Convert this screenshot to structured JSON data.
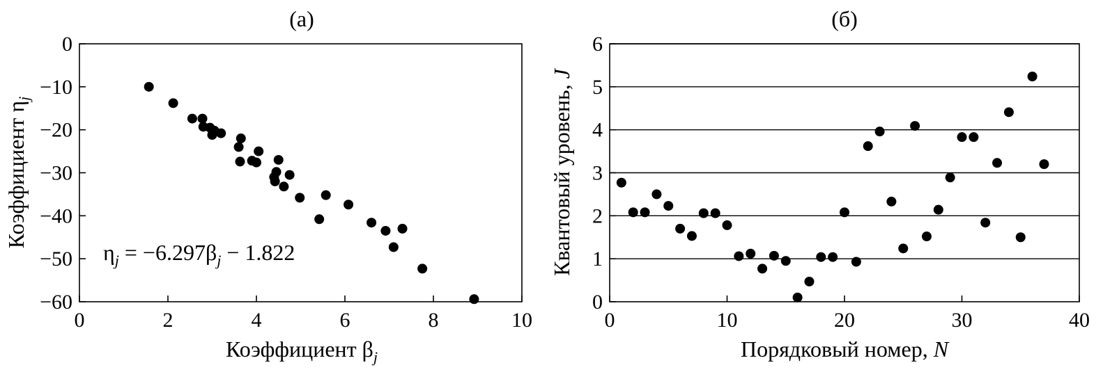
{
  "chart_data": [
    {
      "type": "scatter",
      "panel_label": "(a)",
      "xlabel": "Коэффициент β",
      "xlabel_sub": "j",
      "ylabel": "Коэффициент η",
      "ylabel_sub": "j",
      "xlim": [
        0,
        10
      ],
      "ylim": [
        -60,
        0
      ],
      "x_ticks": [
        0,
        2,
        4,
        6,
        8,
        10
      ],
      "x_tick_labels": [
        "0",
        "2",
        "4",
        "6",
        "8",
        "10"
      ],
      "y_ticks": [
        0,
        -10,
        -20,
        -30,
        -40,
        -50,
        -60
      ],
      "y_tick_labels": [
        "0",
        "−10",
        "−20",
        "−30",
        "−40",
        "−50",
        "−60"
      ],
      "grid": false,
      "annotation": {
        "lhs": "η",
        "lhs_sub": "j",
        "mid": " = −6.297β",
        "mid_sub": "j",
        "rhs": " − 1.822"
      },
      "points": [
        [
          1.57,
          -10.0
        ],
        [
          2.12,
          -13.8
        ],
        [
          2.55,
          -17.4
        ],
        [
          2.78,
          -17.4
        ],
        [
          2.8,
          -19.3
        ],
        [
          2.95,
          -19.5
        ],
        [
          3.0,
          -21.2
        ],
        [
          3.05,
          -20.2
        ],
        [
          3.2,
          -20.8
        ],
        [
          3.6,
          -24.0
        ],
        [
          3.65,
          -22.0
        ],
        [
          3.63,
          -27.4
        ],
        [
          3.9,
          -27.2
        ],
        [
          4.0,
          -27.6
        ],
        [
          4.05,
          -25.0
        ],
        [
          4.4,
          -31.0
        ],
        [
          4.42,
          -32.0
        ],
        [
          4.45,
          -29.8
        ],
        [
          4.5,
          -27.0
        ],
        [
          4.62,
          -33.2
        ],
        [
          4.75,
          -30.5
        ],
        [
          4.98,
          -35.8
        ],
        [
          5.42,
          -40.8
        ],
        [
          5.57,
          -35.2
        ],
        [
          6.08,
          -37.4
        ],
        [
          6.6,
          -41.6
        ],
        [
          6.92,
          -43.5
        ],
        [
          7.1,
          -47.3
        ],
        [
          7.3,
          -43.0
        ],
        [
          7.75,
          -52.3
        ],
        [
          8.92,
          -59.4
        ]
      ]
    },
    {
      "type": "scatter",
      "panel_label": "(б)",
      "xlabel": "Порядковый номер, ",
      "xlabel_var": "N",
      "ylabel": "Квантовый уровень, ",
      "ylabel_var": "J",
      "xlim": [
        0,
        40
      ],
      "ylim": [
        0,
        6
      ],
      "x_ticks": [
        0,
        10,
        20,
        30,
        40
      ],
      "x_tick_labels": [
        "0",
        "10",
        "20",
        "30",
        "40"
      ],
      "y_ticks": [
        0,
        1,
        2,
        3,
        4,
        5,
        6
      ],
      "y_tick_labels": [
        "0",
        "1",
        "2",
        "3",
        "4",
        "5",
        "6"
      ],
      "grid": true,
      "grid_axis": "y",
      "points": [
        [
          1,
          2.77
        ],
        [
          2,
          2.08
        ],
        [
          3,
          2.08
        ],
        [
          4,
          2.5
        ],
        [
          5,
          2.23
        ],
        [
          6,
          1.7
        ],
        [
          7,
          1.53
        ],
        [
          8,
          2.06
        ],
        [
          9,
          2.06
        ],
        [
          10,
          1.78
        ],
        [
          11,
          1.06
        ],
        [
          12,
          1.12
        ],
        [
          13,
          0.77
        ],
        [
          14,
          1.07
        ],
        [
          15,
          0.95
        ],
        [
          16,
          0.1
        ],
        [
          17,
          0.47
        ],
        [
          18,
          1.04
        ],
        [
          19,
          1.04
        ],
        [
          20,
          2.08
        ],
        [
          21,
          0.93
        ],
        [
          22,
          3.62
        ],
        [
          23,
          3.96
        ],
        [
          24,
          2.33
        ],
        [
          25,
          1.24
        ],
        [
          26,
          4.09
        ],
        [
          27,
          1.52
        ],
        [
          28,
          2.14
        ],
        [
          29,
          2.89
        ],
        [
          30,
          3.83
        ],
        [
          31,
          3.83
        ],
        [
          32,
          1.84
        ],
        [
          33,
          3.23
        ],
        [
          34,
          4.41
        ],
        [
          35,
          1.5
        ],
        [
          36,
          5.24
        ],
        [
          37,
          3.2
        ]
      ]
    }
  ]
}
